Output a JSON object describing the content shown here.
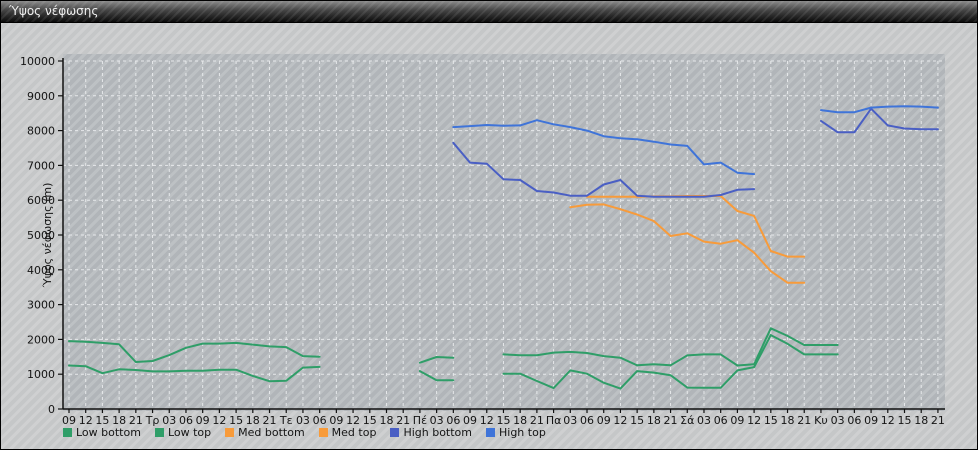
{
  "window": {
    "title": "Ύψος νέφωσης"
  },
  "chart_data": {
    "type": "line",
    "title": "Ύψος νέφωσης",
    "ylabel": "Ύψος νέφωσης (m)",
    "ylim": [
      0,
      10000
    ],
    "ytick_step": 1000,
    "grid": "white-dashed",
    "legend_position": "bottom-left",
    "x_tick_labels": [
      "09",
      "12",
      "15",
      "18",
      "21",
      "Τρ",
      "03",
      "06",
      "09",
      "12",
      "15",
      "18",
      "21",
      "Τε",
      "03",
      "06",
      "09",
      "12",
      "15",
      "18",
      "21",
      "Πέ",
      "03",
      "06",
      "09",
      "12",
      "15",
      "18",
      "21",
      "Πα",
      "03",
      "06",
      "09",
      "12",
      "15",
      "18",
      "21",
      "Σά",
      "03",
      "06",
      "09",
      "12",
      "15",
      "18",
      "21",
      "Κυ",
      "03",
      "06",
      "09",
      "12",
      "15",
      "18",
      "21"
    ],
    "series": [
      {
        "name": "Low bottom",
        "color": "#2f9e68",
        "values": [
          1250,
          1230,
          1030,
          1140,
          1120,
          1080,
          1080,
          1100,
          1100,
          1130,
          1130,
          950,
          800,
          810,
          1190,
          1210,
          null,
          null,
          null,
          null,
          null,
          1090,
          825,
          825,
          null,
          null,
          1015,
          1015,
          805,
          600,
          1110,
          1015,
          755,
          585,
          1090,
          1045,
          970,
          615,
          610,
          610,
          1110,
          1205,
          2125,
          1875,
          1570,
          1570,
          1570,
          null,
          null,
          null,
          null,
          null,
          null
        ]
      },
      {
        "name": "Low top",
        "color": "#2f9e68",
        "values": [
          1950,
          1930,
          1900,
          1860,
          1350,
          1380,
          1550,
          1760,
          1880,
          1880,
          1900,
          1850,
          1800,
          1780,
          1520,
          1500,
          null,
          null,
          null,
          null,
          null,
          1330,
          1495,
          1475,
          null,
          null,
          1570,
          1545,
          1545,
          1620,
          1640,
          1610,
          1520,
          1475,
          1255,
          1285,
          1255,
          1540,
          1570,
          1570,
          1250,
          1285,
          2320,
          2100,
          1840,
          1840,
          1840,
          null,
          null,
          null,
          null,
          null,
          null
        ]
      },
      {
        "name": "Med bottom",
        "color": "#f89b3a",
        "values": [
          null,
          null,
          null,
          null,
          null,
          null,
          null,
          null,
          null,
          null,
          null,
          null,
          null,
          null,
          null,
          null,
          null,
          null,
          null,
          null,
          null,
          null,
          null,
          null,
          null,
          null,
          null,
          null,
          null,
          null,
          5800,
          5870,
          5880,
          5740,
          5590,
          5400,
          4970,
          5050,
          4810,
          4750,
          4850,
          4490,
          3960,
          3630,
          3630,
          null,
          null,
          null,
          null,
          null,
          null,
          null,
          null
        ]
      },
      {
        "name": "Med top",
        "color": "#f89b3a",
        "values": [
          null,
          null,
          null,
          null,
          null,
          null,
          null,
          null,
          null,
          null,
          null,
          null,
          null,
          null,
          null,
          null,
          null,
          null,
          null,
          null,
          null,
          null,
          null,
          null,
          null,
          null,
          null,
          null,
          null,
          null,
          null,
          6100,
          6100,
          6100,
          6100,
          6110,
          6110,
          6120,
          6120,
          6120,
          5690,
          5550,
          4540,
          4380,
          4380,
          null,
          null,
          null,
          null,
          null,
          null,
          null,
          null
        ]
      },
      {
        "name": "High bottom",
        "color": "#4a5fc4",
        "values": [
          null,
          null,
          null,
          null,
          null,
          null,
          null,
          null,
          null,
          null,
          null,
          null,
          null,
          null,
          null,
          null,
          null,
          null,
          null,
          null,
          null,
          null,
          null,
          7650,
          7080,
          7050,
          6600,
          6580,
          6265,
          6220,
          6130,
          6130,
          6450,
          6580,
          6130,
          6100,
          6100,
          6100,
          6100,
          6150,
          6300,
          6320,
          null,
          null,
          null,
          8280,
          7950,
          7950,
          8630,
          8150,
          8060,
          8040,
          8040
        ]
      },
      {
        "name": "High top",
        "color": "#3f74d9",
        "values": [
          null,
          null,
          null,
          null,
          null,
          null,
          null,
          null,
          null,
          null,
          null,
          null,
          null,
          null,
          null,
          null,
          null,
          null,
          null,
          null,
          null,
          null,
          null,
          8100,
          8130,
          8160,
          8140,
          8150,
          8300,
          8180,
          8100,
          8000,
          7840,
          7780,
          7750,
          7680,
          7600,
          7560,
          7030,
          7080,
          6790,
          6750,
          null,
          null,
          null,
          8590,
          8530,
          8530,
          8660,
          8690,
          8700,
          8690,
          8660
        ]
      }
    ]
  }
}
